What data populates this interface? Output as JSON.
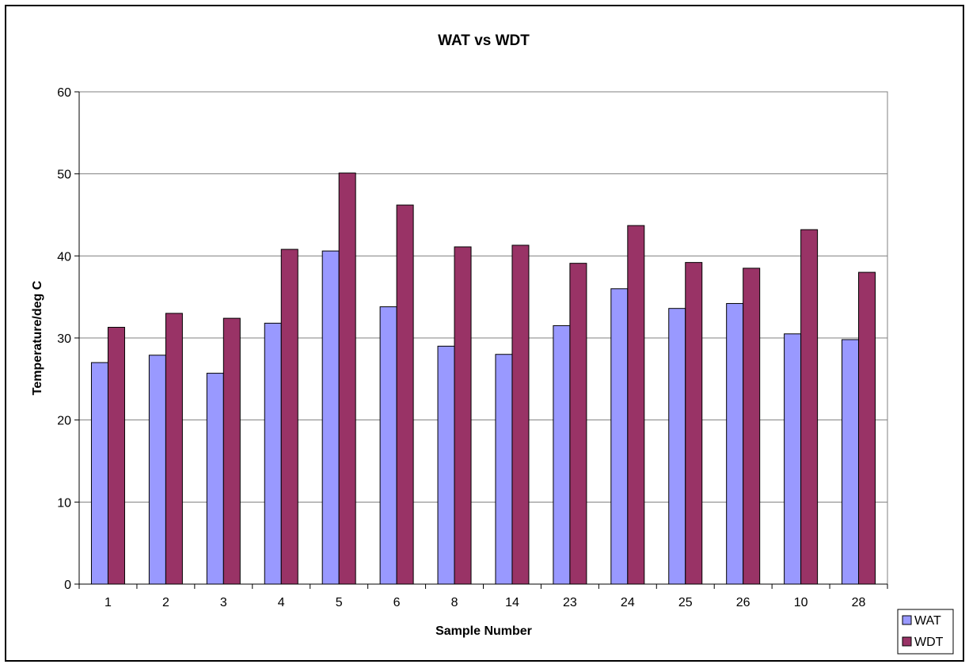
{
  "chart_data": {
    "type": "bar",
    "title": "WAT vs WDT",
    "xlabel": "Sample Number",
    "ylabel": "Temperature/deg C",
    "categories": [
      "1",
      "2",
      "3",
      "4",
      "5",
      "6",
      "8",
      "14",
      "23",
      "24",
      "25",
      "26",
      "10",
      "28"
    ],
    "series": [
      {
        "name": "WAT",
        "color": "#9999ff",
        "values": [
          27.0,
          27.9,
          25.7,
          31.8,
          40.6,
          33.8,
          29.0,
          28.0,
          31.5,
          36.0,
          33.6,
          34.2,
          30.5,
          29.8
        ]
      },
      {
        "name": "WDT",
        "color": "#993366",
        "values": [
          31.3,
          33.0,
          32.4,
          40.8,
          50.1,
          46.2,
          41.1,
          41.3,
          39.1,
          43.7,
          39.2,
          38.5,
          43.2,
          38.0
        ]
      }
    ],
    "ylim": [
      0,
      60
    ],
    "yticks": [
      "0",
      "10",
      "20",
      "30",
      "40",
      "50",
      "60"
    ],
    "grid": true,
    "legend_position": "bottom-right"
  }
}
